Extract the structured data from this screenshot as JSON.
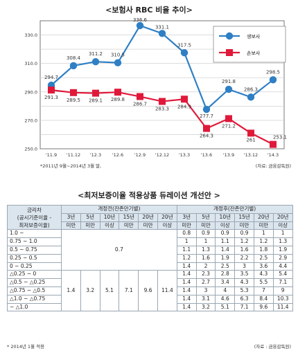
{
  "chart_data": {
    "type": "line",
    "title": "<보험사 RBC 비율 추이>",
    "categories": [
      "'11.9",
      "'11.12",
      "'12.3",
      "'12.6",
      "'12.9",
      "'12.12",
      "'13.3",
      "'13.6",
      "'13.9",
      "'13.12",
      "'14.3"
    ],
    "series": [
      {
        "name": "생보사",
        "color": "#2f7fc4",
        "marker": "circle",
        "values": [
          294.7,
          308.4,
          311.2,
          310.5,
          336.6,
          331.1,
          317.5,
          277.7,
          291.8,
          286.3,
          298.5
        ]
      },
      {
        "name": "손보사",
        "color": "#e0193a",
        "marker": "square",
        "values": [
          291.3,
          289.5,
          289.1,
          289.8,
          286.7,
          283.3,
          284.9,
          264.3,
          271.2,
          261,
          253.1
        ]
      }
    ],
    "series_labels": [
      [
        "294.7",
        "308.4",
        "311.2",
        "310.5",
        "336.6",
        "331.1",
        "317.5",
        "277.7",
        "291.8",
        "286.3",
        "298.5"
      ],
      [
        "291.3",
        "289.5",
        "289.1",
        "289.8",
        "286.7",
        "283.3",
        "284.9",
        "264.3",
        "271.2",
        "261",
        "253.1"
      ]
    ],
    "ylim": [
      250,
      340
    ],
    "yticks": [
      250,
      270,
      290,
      310,
      330
    ],
    "ytick_labels": [
      "250.0",
      "270.0",
      "290.0",
      "310.0",
      "330.0"
    ],
    "grid": true,
    "legend_position": "top-right"
  },
  "chart_note": "*2011년 9월~2014년 3월 말,",
  "chart_source": "(자료: 금융감독원)",
  "table": {
    "title": "<최저보증이율 적용상품 듀레이션 개선안 >",
    "head_rowlabel": [
      "금리차",
      "(공시기준이율 -",
      "최저보증이율)"
    ],
    "head_before": "개정전(잔존만기별)",
    "head_after": "개정후(잔존만기별)",
    "columns": [
      [
        "3년",
        "미만"
      ],
      [
        "5년",
        "미만"
      ],
      [
        "10년",
        "이상"
      ],
      [
        "15년",
        "미만"
      ],
      [
        "20년",
        "미만"
      ],
      [
        "20년",
        "이상"
      ]
    ],
    "rows": [
      {
        "label": "1.0 ~",
        "after": [
          "0.8",
          "0.9",
          "0.9",
          "0.9",
          "1",
          "1"
        ]
      },
      {
        "label": "0.75 ~ 1.0",
        "after": [
          "1",
          "1",
          "1.1",
          "1.2",
          "1.2",
          "1.3"
        ]
      },
      {
        "label": "0.5 ~ 0.75",
        "after": [
          "1.1",
          "1.3",
          "1.4",
          "1.6",
          "1.8",
          "1.9"
        ]
      },
      {
        "label": "0.25 ~ 0.5",
        "after": [
          "1.2",
          "1.6",
          "1.9",
          "2.2",
          "2.5",
          "2.9"
        ]
      },
      {
        "label": "0 ~ 0.25",
        "after": [
          "1.4",
          "2",
          "2.5",
          "3",
          "3.6",
          "4.4"
        ]
      },
      {
        "label": "△0.25 ~ 0",
        "after": [
          "1.4",
          "2.3",
          "2.8",
          "3.5",
          "4.3",
          "5.4"
        ]
      },
      {
        "label": "△0.5 ~ △0.25",
        "after": [
          "1.4",
          "2.7",
          "3.4",
          "4.3",
          "5.5",
          "7.1"
        ]
      },
      {
        "label": "△0.75 ~ △0.5",
        "after": [
          "1.4",
          "3",
          "4",
          "5.3",
          "7",
          "9"
        ]
      },
      {
        "label": "△1.0 ~ △0.75",
        "after": [
          "1.4",
          "3.1",
          "4.6",
          "6.3",
          "8.4",
          "10.3"
        ]
      },
      {
        "label": "~ △1.0",
        "after": [
          "1.4",
          "3.2",
          "5.1",
          "7.1",
          "9.6",
          "11.4"
        ]
      }
    ],
    "before_upper": "0.7",
    "before_lower": [
      "1.4",
      "3.2",
      "5.1",
      "7.1",
      "9.6",
      "11.4"
    ],
    "footnote": "* 2014년 1월 적용",
    "source": "(자료 : 금융감독원)"
  }
}
